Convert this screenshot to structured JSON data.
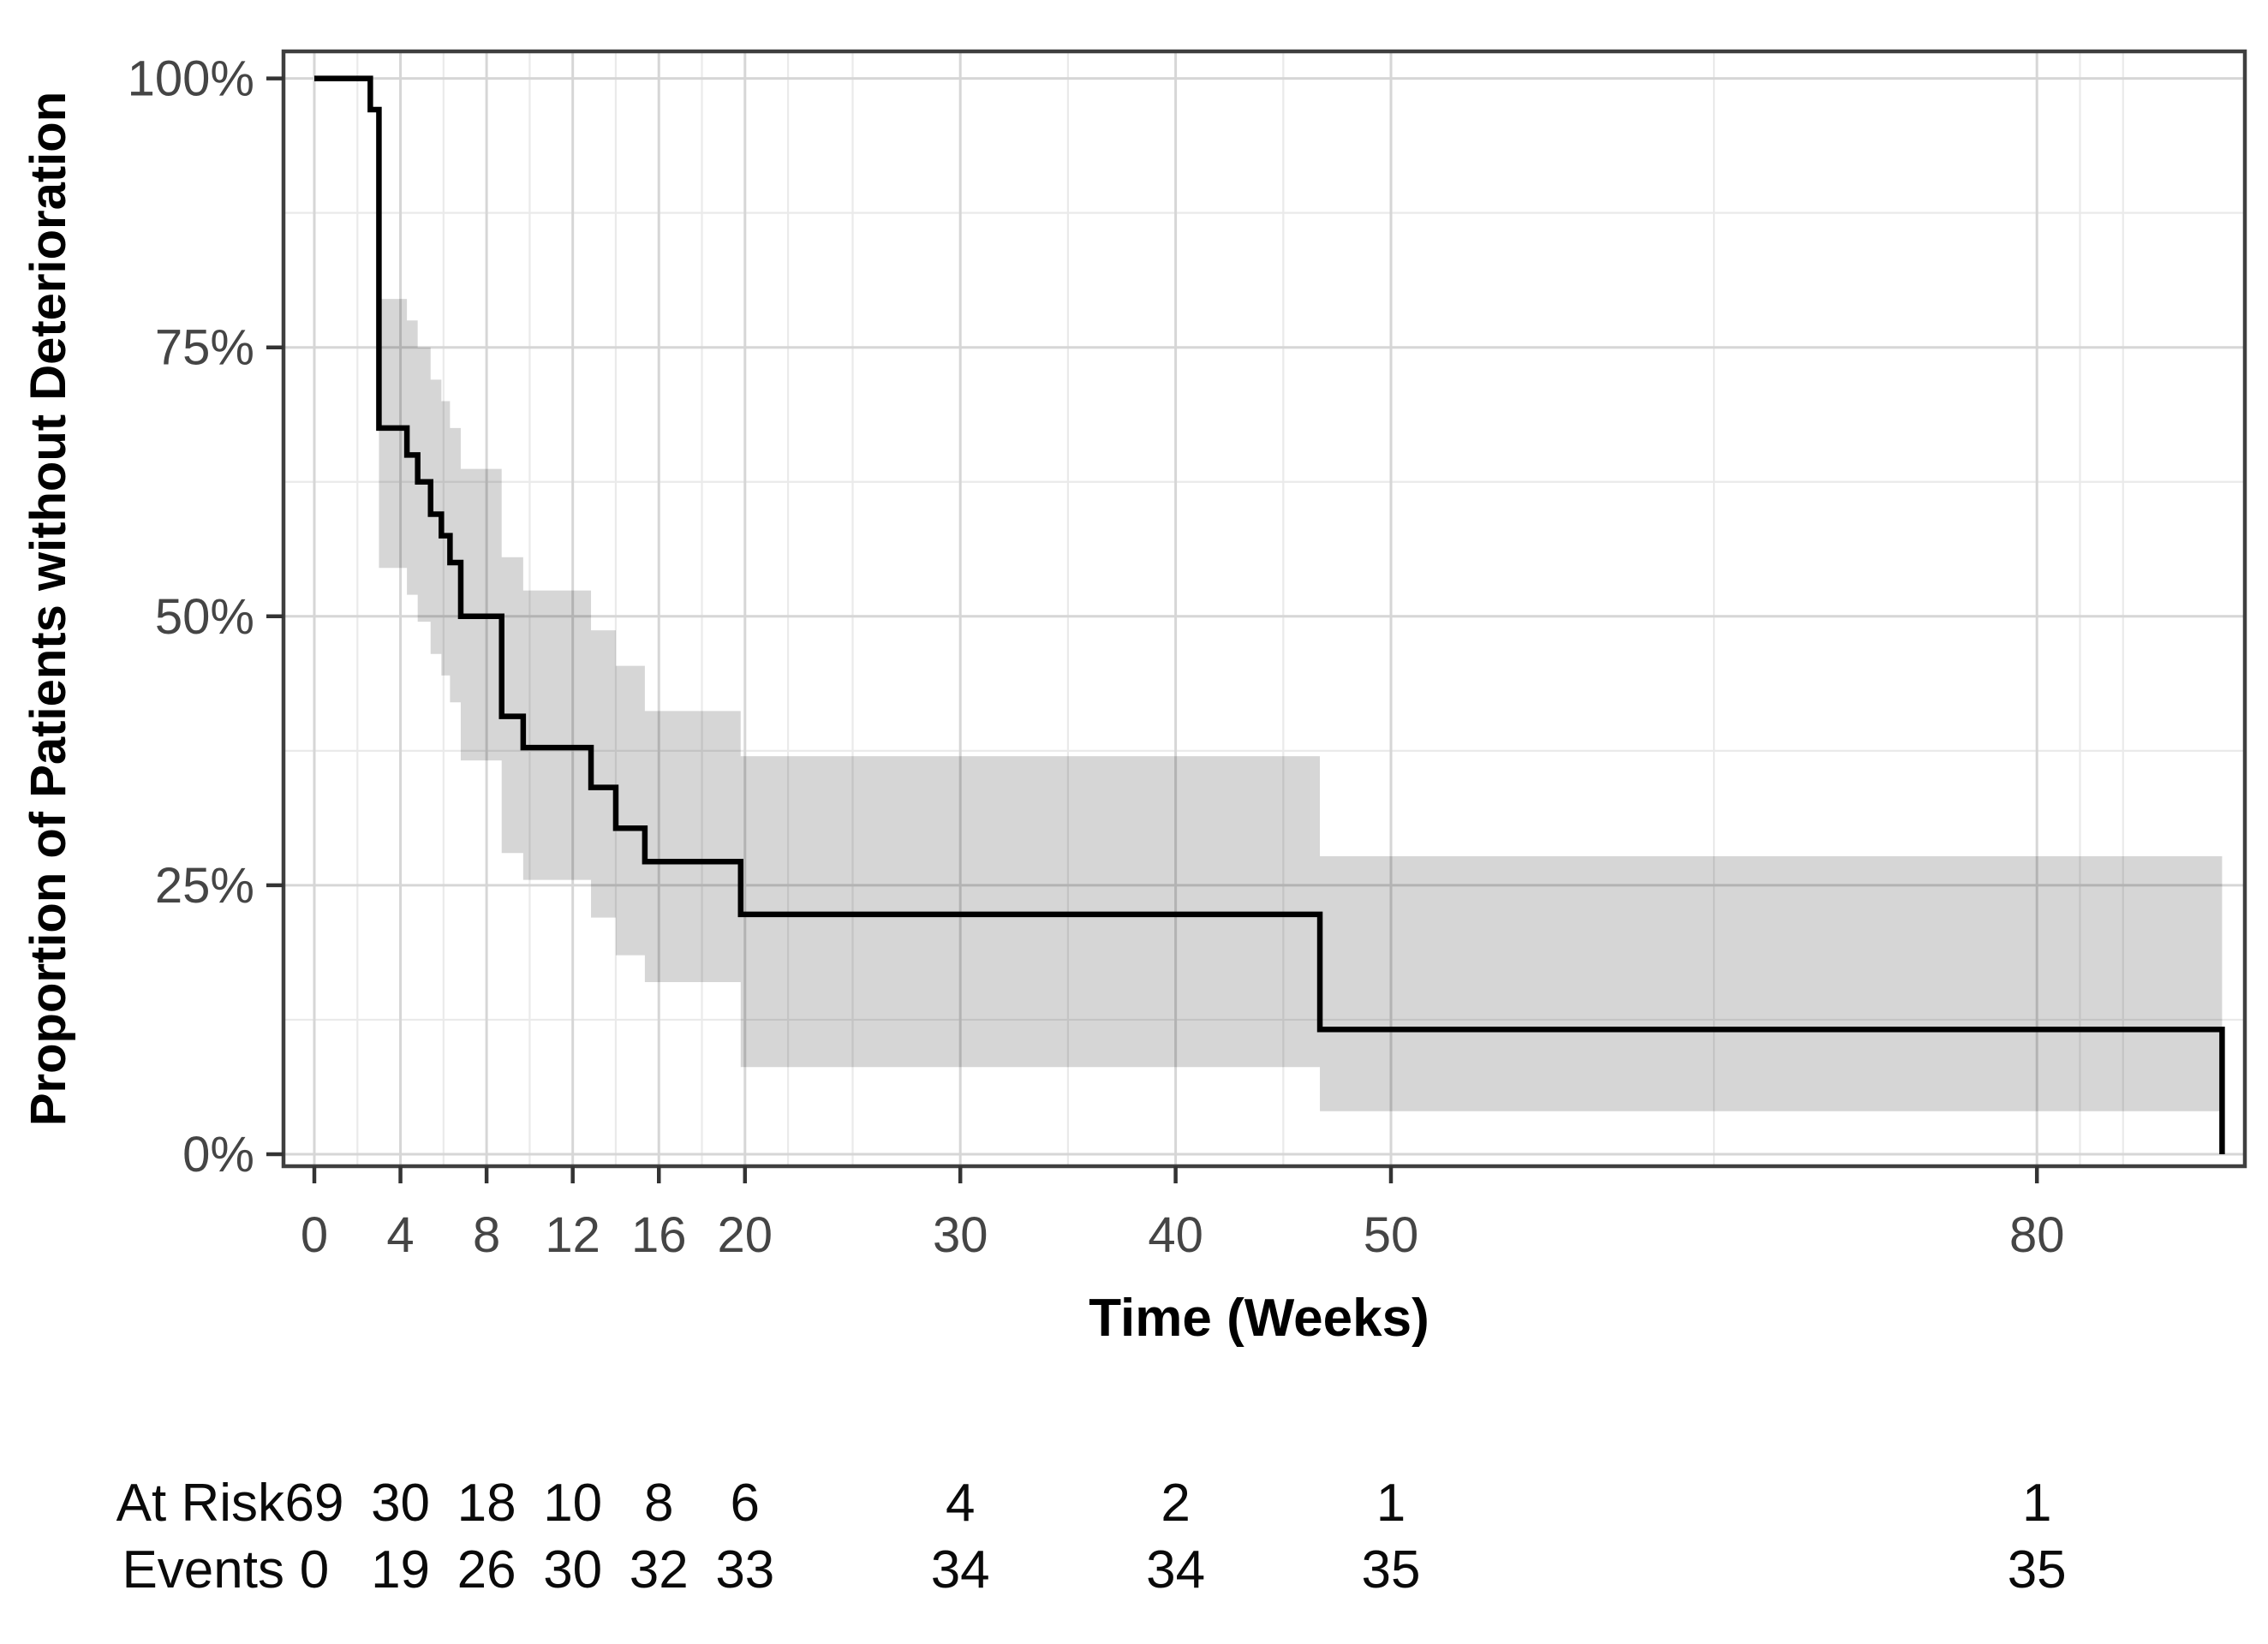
{
  "chart_data": {
    "type": "line",
    "variant": "kaplan-meier-step-with-confidence-band",
    "title": "",
    "xlabel": "Time (Weeks)",
    "ylabel": "Proportion of Patients without Deterioration",
    "xlim": [
      0,
      89.6
    ],
    "ylim": [
      0,
      100
    ],
    "grid": "on",
    "legend_position": "none",
    "x_ticks": [
      0,
      4,
      8,
      12,
      16,
      20,
      30,
      40,
      50,
      80
    ],
    "x_tick_labels": [
      "0",
      "4",
      "8",
      "12",
      "16",
      "20",
      "30",
      "40",
      "50",
      "80"
    ],
    "x_minor_gridlines": [
      2,
      6,
      10,
      14,
      18,
      22,
      25,
      35,
      45,
      65,
      82,
      84
    ],
    "y_ticks": [
      0,
      25,
      50,
      75,
      100
    ],
    "y_tick_labels": [
      "0%",
      "25%",
      "50%",
      "75%",
      "100%"
    ],
    "y_minor_gridlines": [
      12.5,
      37.5,
      62.5,
      87.5
    ],
    "curve_points": [
      [
        0,
        100
      ],
      [
        2.6,
        97.1
      ],
      [
        3.0,
        67.5
      ],
      [
        4.3,
        65.0
      ],
      [
        4.8,
        62.5
      ],
      [
        5.4,
        59.5
      ],
      [
        5.9,
        57.5
      ],
      [
        6.3,
        55.0
      ],
      [
        6.8,
        50.0
      ],
      [
        8.7,
        40.7
      ],
      [
        9.7,
        37.8
      ],
      [
        12.85,
        34.1
      ],
      [
        14.0,
        30.3
      ],
      [
        15.35,
        27.2
      ],
      [
        19.8,
        22.3
      ],
      [
        46.7,
        11.6
      ],
      [
        88.6,
        0
      ]
    ],
    "ci_segments": [
      [
        3.0,
        4.3,
        54.5,
        79.5
      ],
      [
        4.3,
        4.8,
        52.0,
        77.5
      ],
      [
        4.8,
        5.4,
        49.5,
        75.0
      ],
      [
        5.4,
        5.9,
        46.5,
        72.0
      ],
      [
        5.9,
        6.3,
        44.5,
        70.0
      ],
      [
        6.3,
        6.8,
        42.0,
        67.5
      ],
      [
        6.8,
        8.7,
        36.6,
        63.7
      ],
      [
        8.7,
        9.7,
        28.0,
        55.5
      ],
      [
        9.7,
        12.85,
        25.5,
        52.4
      ],
      [
        12.85,
        14.0,
        22.0,
        48.7
      ],
      [
        14.0,
        15.35,
        18.5,
        45.4
      ],
      [
        15.35,
        19.8,
        16.0,
        41.2
      ],
      [
        19.8,
        46.7,
        8.1,
        37.0
      ],
      [
        46.7,
        88.6,
        4.0,
        27.7
      ]
    ],
    "risk_table": {
      "time_points": [
        0,
        4,
        8,
        12,
        16,
        20,
        30,
        40,
        50,
        80
      ],
      "rows": [
        {
          "label": "At Risk",
          "values": [
            "69",
            "30",
            "18",
            "10",
            "8",
            "6",
            "4",
            "2",
            "1",
            "1"
          ]
        },
        {
          "label": "Events",
          "values": [
            "0",
            "19",
            "26",
            "30",
            "32",
            "33",
            "34",
            "34",
            "35",
            "35"
          ]
        }
      ]
    }
  },
  "colors": {
    "background": "#ffffff",
    "curve": "#000000",
    "ci_band": "rgba(0,0,0,0.16)",
    "grid_major": "#d6d6d6",
    "grid_minor": "#eaeaea",
    "panel_border": "#3f3f3f",
    "tick_mark": "#333333",
    "tick_label": "#454545",
    "axis_title": "#000000",
    "risk_text": "#0a0a0a"
  }
}
